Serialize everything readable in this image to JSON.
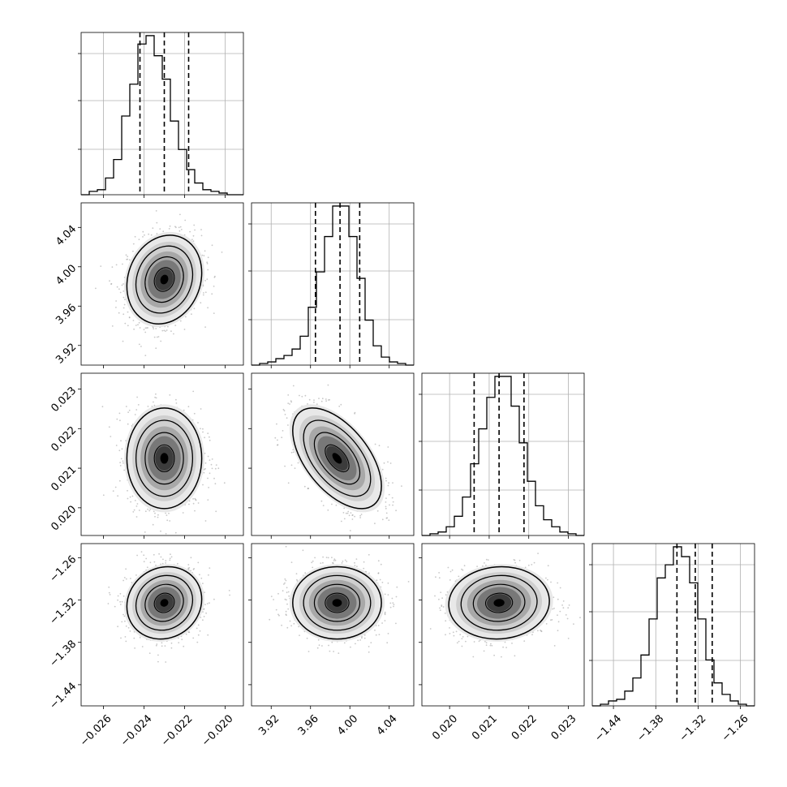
{
  "chart_data": {
    "type": "corner",
    "grid": true,
    "colors": {
      "line": "#000000",
      "grid": "#b0b0b0",
      "scatter": "#9a9a9a",
      "axes": "#000000"
    },
    "parameters": [
      {
        "index": 0,
        "range": [
          -0.0271,
          -0.0191
        ],
        "ticks": [
          -0.026,
          -0.024,
          -0.022,
          -0.02
        ],
        "tick_labels": [
          "−0.026",
          "−0.024",
          "−0.022",
          "−0.020"
        ],
        "quantiles": [
          -0.0242,
          -0.023,
          -0.0218
        ],
        "mean": -0.023,
        "sd": 0.0009
      },
      {
        "index": 1,
        "range": [
          3.9,
          4.065
        ],
        "ticks": [
          3.92,
          3.96,
          4.0,
          4.04
        ],
        "tick_labels": [
          "3.92",
          "3.96",
          "4.00",
          "4.04"
        ],
        "quantiles": [
          3.965,
          3.99,
          4.01
        ],
        "mean": 3.987,
        "sd": 0.022
      },
      {
        "index": 2,
        "range": [
          0.0193,
          0.0234
        ],
        "ticks": [
          0.02,
          0.021,
          0.022,
          0.023
        ],
        "tick_labels": [
          "0.020",
          "0.021",
          "0.022",
          "0.023"
        ],
        "quantiles": [
          0.02062,
          0.02125,
          0.02188
        ],
        "mean": 0.02125,
        "sd": 0.00062
      },
      {
        "index": 3,
        "range": [
          -1.47,
          -1.24
        ],
        "ticks": [
          -1.44,
          -1.38,
          -1.32,
          -1.26
        ],
        "tick_labels": [
          "−1.44",
          "−1.38",
          "−1.32",
          "−1.26"
        ],
        "quantiles": [
          -1.35,
          -1.324,
          -1.3
        ],
        "mean": -1.324,
        "sd": 0.025
      }
    ],
    "histograms": [
      {
        "param": 0,
        "bin_start": -0.0271,
        "bin_end": -0.0191,
        "counts": [
          0,
          2,
          3,
          10,
          21,
          47,
          66,
          90,
          95,
          83,
          69,
          44,
          27,
          15,
          7,
          3,
          2,
          1,
          0,
          0
        ]
      },
      {
        "param": 1,
        "bin_start": 3.9,
        "bin_end": 4.065,
        "counts": [
          0,
          1,
          2,
          4,
          6,
          10,
          18,
          36,
          58,
          80,
          99,
          99,
          80,
          54,
          28,
          12,
          5,
          2,
          1,
          0
        ]
      },
      {
        "param": 2,
        "bin_start": 0.0193,
        "bin_end": 0.0234,
        "counts": [
          0,
          1,
          2,
          5,
          11,
          22,
          41,
          61,
          79,
          91,
          91,
          74,
          53,
          31,
          17,
          9,
          5,
          2,
          1,
          0
        ]
      },
      {
        "param": 3,
        "bin_start": -1.47,
        "bin_end": -1.24,
        "counts": [
          0,
          1,
          3,
          4,
          9,
          17,
          31,
          53,
          78,
          86,
          97,
          91,
          75,
          53,
          28,
          14,
          7,
          3,
          1,
          0
        ]
      }
    ],
    "correlations": [
      {
        "x": 0,
        "y": 1,
        "rho": 0.15
      },
      {
        "x": 0,
        "y": 2,
        "rho": 0.0
      },
      {
        "x": 1,
        "y": 2,
        "rho": -0.55
      },
      {
        "x": 0,
        "y": 3,
        "rho": 0.1
      },
      {
        "x": 1,
        "y": 3,
        "rho": 0.0
      },
      {
        "x": 2,
        "y": 3,
        "rho": 0.05
      }
    ]
  }
}
